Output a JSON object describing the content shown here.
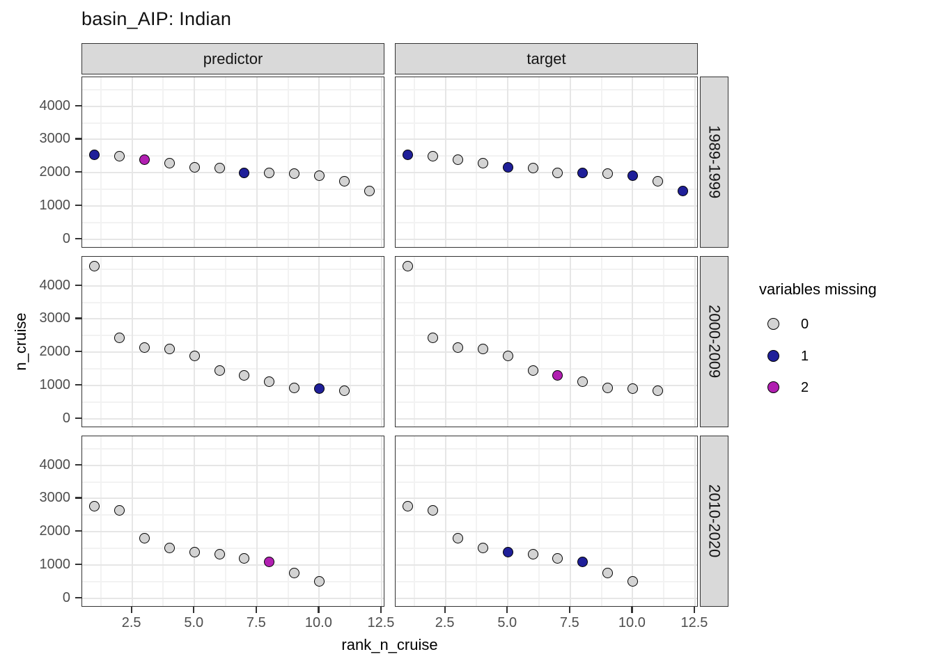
{
  "chart_data": {
    "type": "scatter",
    "title": "basin_AIP: Indian",
    "xlabel": "rank_n_cruise",
    "ylabel": "n_cruise",
    "facet_cols": [
      "predictor",
      "target"
    ],
    "facet_rows": [
      "1989-1999",
      "2000-2009",
      "2010-2020"
    ],
    "x_ticks": [
      {
        "value": 2.5,
        "label": "2.5"
      },
      {
        "value": 5.0,
        "label": "5.0"
      },
      {
        "value": 7.5,
        "label": "7.5"
      },
      {
        "value": 10.0,
        "label": "10.0"
      },
      {
        "value": 12.5,
        "label": "12.5"
      }
    ],
    "y_ticks": [
      {
        "value": 0,
        "label": "0"
      },
      {
        "value": 1000,
        "label": "1000"
      },
      {
        "value": 2000,
        "label": "2000"
      },
      {
        "value": 3000,
        "label": "3000"
      },
      {
        "value": 4000,
        "label": "4000"
      }
    ],
    "x_minor": [
      1.25,
      3.75,
      6.25,
      8.75,
      11.25
    ],
    "y_minor": [
      500,
      1500,
      2500,
      3500,
      4500
    ],
    "x_range": [
      0.5,
      12.64
    ],
    "y_range": [
      -283,
      4874
    ],
    "grid": {
      "major": "#e6e6e6",
      "minor": "#f2f2f2"
    },
    "legend": {
      "title": "variables missing",
      "entries": [
        {
          "value": 0,
          "label": "0",
          "color": "#d3d3d3"
        },
        {
          "value": 1,
          "label": "1",
          "color": "#1f1f99"
        },
        {
          "value": 2,
          "label": "2",
          "color": "#b11fb1"
        }
      ]
    },
    "panels": [
      {
        "col": "predictor",
        "row": "1989-1999",
        "points": [
          {
            "x": 1,
            "y": 2530,
            "missing": 1
          },
          {
            "x": 2,
            "y": 2500,
            "missing": 0
          },
          {
            "x": 3,
            "y": 2390,
            "missing": 2
          },
          {
            "x": 4,
            "y": 2280,
            "missing": 0
          },
          {
            "x": 5,
            "y": 2160,
            "missing": 0
          },
          {
            "x": 6,
            "y": 2140,
            "missing": 0
          },
          {
            "x": 7,
            "y": 2000,
            "missing": 1
          },
          {
            "x": 8,
            "y": 1985,
            "missing": 0
          },
          {
            "x": 9,
            "y": 1970,
            "missing": 0
          },
          {
            "x": 10,
            "y": 1915,
            "missing": 0
          },
          {
            "x": 11,
            "y": 1740,
            "missing": 0
          },
          {
            "x": 12,
            "y": 1450,
            "missing": 0
          }
        ]
      },
      {
        "col": "target",
        "row": "1989-1999",
        "points": [
          {
            "x": 1,
            "y": 2530,
            "missing": 1
          },
          {
            "x": 2,
            "y": 2500,
            "missing": 0
          },
          {
            "x": 3,
            "y": 2390,
            "missing": 0
          },
          {
            "x": 4,
            "y": 2280,
            "missing": 0
          },
          {
            "x": 5,
            "y": 2160,
            "missing": 1
          },
          {
            "x": 6,
            "y": 2140,
            "missing": 0
          },
          {
            "x": 7,
            "y": 2000,
            "missing": 0
          },
          {
            "x": 8,
            "y": 1985,
            "missing": 1
          },
          {
            "x": 9,
            "y": 1970,
            "missing": 0
          },
          {
            "x": 10,
            "y": 1915,
            "missing": 1
          },
          {
            "x": 11,
            "y": 1740,
            "missing": 0
          },
          {
            "x": 12,
            "y": 1450,
            "missing": 1
          }
        ]
      },
      {
        "col": "predictor",
        "row": "2000-2009",
        "points": [
          {
            "x": 1,
            "y": 4600,
            "missing": 0
          },
          {
            "x": 2,
            "y": 2440,
            "missing": 0
          },
          {
            "x": 3,
            "y": 2140,
            "missing": 0
          },
          {
            "x": 4,
            "y": 2100,
            "missing": 0
          },
          {
            "x": 5,
            "y": 1890,
            "missing": 0
          },
          {
            "x": 6,
            "y": 1450,
            "missing": 0
          },
          {
            "x": 7,
            "y": 1300,
            "missing": 0
          },
          {
            "x": 8,
            "y": 1115,
            "missing": 0
          },
          {
            "x": 9,
            "y": 930,
            "missing": 0
          },
          {
            "x": 10,
            "y": 905,
            "missing": 1
          },
          {
            "x": 11,
            "y": 845,
            "missing": 0
          }
        ]
      },
      {
        "col": "target",
        "row": "2000-2009",
        "points": [
          {
            "x": 1,
            "y": 4600,
            "missing": 0
          },
          {
            "x": 2,
            "y": 2440,
            "missing": 0
          },
          {
            "x": 3,
            "y": 2140,
            "missing": 0
          },
          {
            "x": 4,
            "y": 2100,
            "missing": 0
          },
          {
            "x": 5,
            "y": 1890,
            "missing": 0
          },
          {
            "x": 6,
            "y": 1450,
            "missing": 0
          },
          {
            "x": 7,
            "y": 1300,
            "missing": 2
          },
          {
            "x": 8,
            "y": 1115,
            "missing": 0
          },
          {
            "x": 9,
            "y": 930,
            "missing": 0
          },
          {
            "x": 10,
            "y": 905,
            "missing": 0
          },
          {
            "x": 11,
            "y": 845,
            "missing": 0
          }
        ]
      },
      {
        "col": "predictor",
        "row": "2010-2020",
        "points": [
          {
            "x": 1,
            "y": 2760,
            "missing": 0
          },
          {
            "x": 2,
            "y": 2645,
            "missing": 0
          },
          {
            "x": 3,
            "y": 1795,
            "missing": 0
          },
          {
            "x": 4,
            "y": 1500,
            "missing": 0
          },
          {
            "x": 5,
            "y": 1385,
            "missing": 0
          },
          {
            "x": 6,
            "y": 1330,
            "missing": 0
          },
          {
            "x": 7,
            "y": 1185,
            "missing": 0
          },
          {
            "x": 8,
            "y": 1080,
            "missing": 2
          },
          {
            "x": 9,
            "y": 745,
            "missing": 0
          },
          {
            "x": 10,
            "y": 500,
            "missing": 0
          }
        ]
      },
      {
        "col": "target",
        "row": "2010-2020",
        "points": [
          {
            "x": 1,
            "y": 2760,
            "missing": 0
          },
          {
            "x": 2,
            "y": 2645,
            "missing": 0
          },
          {
            "x": 3,
            "y": 1795,
            "missing": 0
          },
          {
            "x": 4,
            "y": 1500,
            "missing": 0
          },
          {
            "x": 5,
            "y": 1385,
            "missing": 1
          },
          {
            "x": 6,
            "y": 1330,
            "missing": 0
          },
          {
            "x": 7,
            "y": 1185,
            "missing": 0
          },
          {
            "x": 8,
            "y": 1080,
            "missing": 1
          },
          {
            "x": 9,
            "y": 745,
            "missing": 0
          },
          {
            "x": 10,
            "y": 500,
            "missing": 0
          }
        ]
      }
    ]
  }
}
